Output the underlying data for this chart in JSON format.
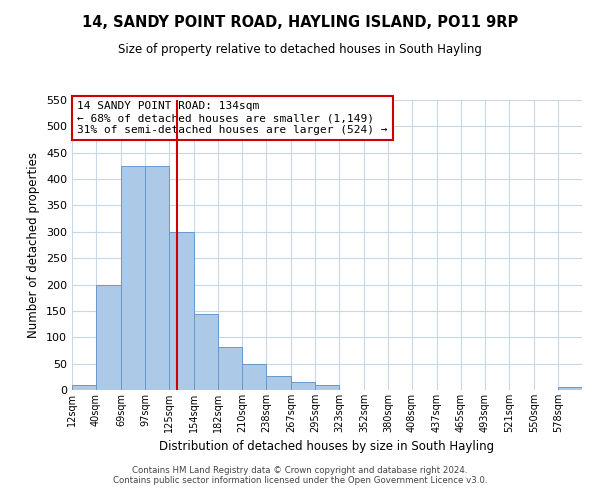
{
  "title": "14, SANDY POINT ROAD, HAYLING ISLAND, PO11 9RP",
  "subtitle": "Size of property relative to detached houses in South Hayling",
  "xlabel": "Distribution of detached houses by size in South Hayling",
  "ylabel": "Number of detached properties",
  "bin_labels": [
    "12sqm",
    "40sqm",
    "69sqm",
    "97sqm",
    "125sqm",
    "154sqm",
    "182sqm",
    "210sqm",
    "238sqm",
    "267sqm",
    "295sqm",
    "323sqm",
    "352sqm",
    "380sqm",
    "408sqm",
    "437sqm",
    "465sqm",
    "493sqm",
    "521sqm",
    "550sqm",
    "578sqm"
  ],
  "bin_edges": [
    12,
    40,
    69,
    97,
    125,
    154,
    182,
    210,
    238,
    267,
    295,
    323,
    352,
    380,
    408,
    437,
    465,
    493,
    521,
    550,
    578,
    606
  ],
  "bar_heights": [
    10,
    200,
    425,
    425,
    300,
    145,
    82,
    50,
    27,
    15,
    10,
    0,
    0,
    0,
    0,
    0,
    0,
    0,
    0,
    0,
    5
  ],
  "bar_color": "#adc9e8",
  "bar_edge_color": "#6699cc",
  "vline_x": 134,
  "vline_color": "#cc0000",
  "ylim": [
    0,
    550
  ],
  "yticks": [
    0,
    50,
    100,
    150,
    200,
    250,
    300,
    350,
    400,
    450,
    500,
    550
  ],
  "annotation_title": "14 SANDY POINT ROAD: 134sqm",
  "annotation_line1": "← 68% of detached houses are smaller (1,149)",
  "annotation_line2": "31% of semi-detached houses are larger (524) →",
  "annotation_box_color": "#ffffff",
  "annotation_box_edge_color": "#cc0000",
  "footer_line1": "Contains HM Land Registry data © Crown copyright and database right 2024.",
  "footer_line2": "Contains public sector information licensed under the Open Government Licence v3.0.",
  "background_color": "#ffffff",
  "grid_color": "#c8d8e8"
}
